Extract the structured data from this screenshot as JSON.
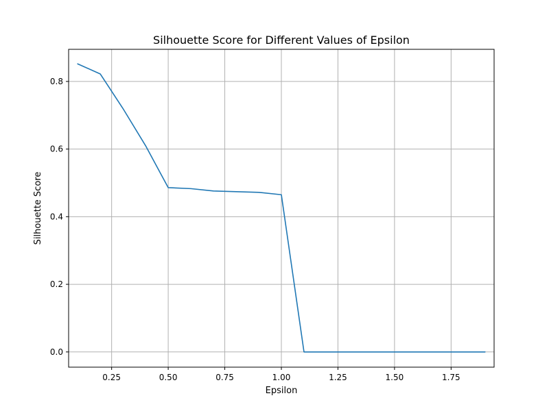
{
  "chart_data": {
    "type": "line",
    "title": "Silhouette Score for Different Values of Epsilon",
    "xlabel": "Epsilon",
    "ylabel": "Silhouette Score",
    "xlim": [
      0.06,
      1.94
    ],
    "ylim": [
      -0.045,
      0.895
    ],
    "xticks": [
      0.25,
      0.5,
      0.75,
      1.0,
      1.25,
      1.5,
      1.75
    ],
    "xtick_labels": [
      "0.25",
      "0.50",
      "0.75",
      "1.00",
      "1.25",
      "1.50",
      "1.75"
    ],
    "yticks": [
      0.0,
      0.2,
      0.4,
      0.6,
      0.8
    ],
    "ytick_labels": [
      "0.0",
      "0.2",
      "0.4",
      "0.6",
      "0.8"
    ],
    "grid": true,
    "series": [
      {
        "color": "#1f77b4",
        "x": [
          0.1,
          0.2,
          0.3,
          0.4,
          0.5,
          0.6,
          0.7,
          0.8,
          0.9,
          1.0,
          1.1,
          1.2,
          1.3,
          1.4,
          1.5,
          1.6,
          1.7,
          1.8,
          1.9
        ],
        "y": [
          0.852,
          0.822,
          0.72,
          0.61,
          0.486,
          0.483,
          0.476,
          0.474,
          0.472,
          0.465,
          0.0,
          0.0,
          0.0,
          0.0,
          0.0,
          0.0,
          0.0,
          0.0,
          0.0
        ]
      }
    ]
  }
}
